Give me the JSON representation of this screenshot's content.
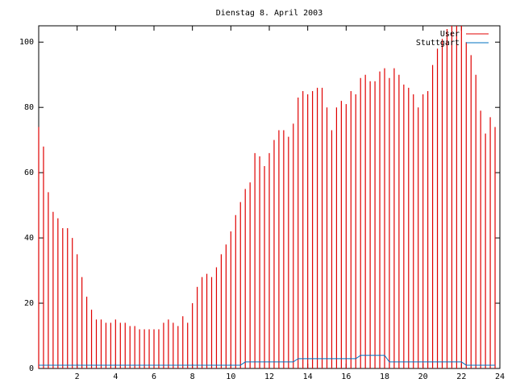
{
  "chart_data": {
    "type": "impulse",
    "title": "Dienstag 8. April 2003",
    "x": [
      0,
      0.25,
      0.5,
      0.75,
      1,
      1.25,
      1.5,
      1.75,
      2,
      2.25,
      2.5,
      2.75,
      3,
      3.25,
      3.5,
      3.75,
      4,
      4.25,
      4.5,
      4.75,
      5,
      5.25,
      5.5,
      5.75,
      6,
      6.25,
      6.5,
      6.75,
      7,
      7.25,
      7.5,
      7.75,
      8,
      8.25,
      8.5,
      8.75,
      9,
      9.25,
      9.5,
      9.75,
      10,
      10.25,
      10.5,
      10.75,
      11,
      11.25,
      11.5,
      11.75,
      12,
      12.25,
      12.5,
      12.75,
      13,
      13.25,
      13.5,
      13.75,
      14,
      14.25,
      14.5,
      14.75,
      15,
      15.25,
      15.5,
      15.75,
      16,
      16.25,
      16.5,
      16.75,
      17,
      17.25,
      17.5,
      17.75,
      18,
      18.25,
      18.5,
      18.75,
      19,
      19.25,
      19.5,
      19.75,
      20,
      20.25,
      20.5,
      20.75,
      21,
      21.25,
      21.5,
      21.75,
      22,
      22.25,
      22.5,
      22.75,
      23,
      23.25,
      23.5,
      23.75
    ],
    "series": [
      {
        "name": "User",
        "color": "#e00000",
        "style": "impulses",
        "values": [
          74,
          68,
          54,
          48,
          46,
          43,
          43,
          40,
          35,
          28,
          22,
          18,
          15,
          15,
          14,
          14,
          15,
          14,
          14,
          13,
          13,
          12,
          12,
          12,
          12,
          12,
          14,
          15,
          14,
          13,
          16,
          14,
          20,
          25,
          28,
          29,
          28,
          31,
          35,
          38,
          42,
          47,
          51,
          55,
          57,
          66,
          65,
          62,
          66,
          70,
          73,
          73,
          71,
          75,
          83,
          85,
          84,
          85,
          86,
          86,
          80,
          73,
          80,
          82,
          81,
          85,
          84,
          89,
          90,
          88,
          88,
          91,
          92,
          89,
          92,
          90,
          87,
          86,
          84,
          80,
          84,
          85,
          93,
          98,
          101,
          104,
          105,
          105,
          105,
          100,
          96,
          90,
          79,
          72,
          77,
          74
        ]
      },
      {
        "name": "Stuttgart",
        "color": "#0070c0",
        "style": "line",
        "values": [
          1,
          1,
          1,
          1,
          1,
          1,
          1,
          1,
          1,
          1,
          1,
          1,
          1,
          1,
          1,
          1,
          1,
          1,
          1,
          1,
          1,
          1,
          1,
          1,
          1,
          1,
          1,
          1,
          1,
          1,
          1,
          1,
          1,
          1,
          1,
          1,
          1,
          1,
          1,
          1,
          1,
          1,
          1,
          2,
          2,
          2,
          2,
          2,
          2,
          2,
          2,
          2,
          2,
          2,
          3,
          3,
          3,
          3,
          3,
          3,
          3,
          3,
          3,
          3,
          3,
          3,
          3,
          4,
          4,
          4,
          4,
          4,
          4,
          2,
          2,
          2,
          2,
          2,
          2,
          2,
          2,
          2,
          2,
          2,
          2,
          2,
          2,
          2,
          2,
          1,
          1,
          1,
          1,
          1,
          1,
          1
        ]
      }
    ],
    "xlim": [
      0,
      24
    ],
    "xticks": [
      2,
      4,
      6,
      8,
      10,
      12,
      14,
      16,
      18,
      20,
      22,
      24
    ],
    "ylim": [
      0,
      105
    ],
    "yticks": [
      0,
      20,
      40,
      60,
      80,
      100
    ],
    "legend": "top-right"
  }
}
